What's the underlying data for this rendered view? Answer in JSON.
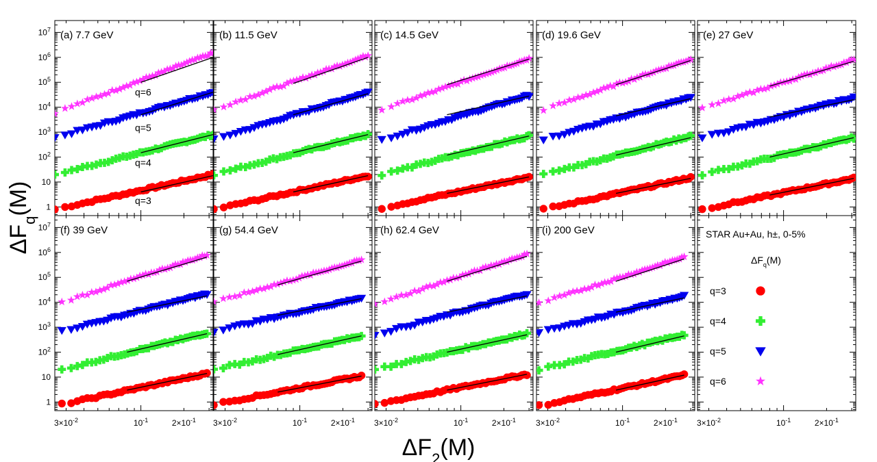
{
  "chart_data": {
    "type": "scatter",
    "xlabel": "ΔF2(M)",
    "ylabel": "ΔFq(M)",
    "xscale": "log",
    "yscale": "log",
    "xlim": [
      0.025,
      0.32
    ],
    "ylim": [
      0.45,
      30000000
    ],
    "x_tick_labels": [
      "3×10⁻²",
      "10⁻¹",
      "2×10⁻¹"
    ],
    "y_tick_labels": [
      "1",
      "10",
      "10²",
      "10³",
      "10⁴",
      "10⁵",
      "10⁶",
      "10⁷"
    ],
    "series_colors": {
      "q=3": "#ff0000",
      "q=4": "#33ee33",
      "q=5": "#0000ee",
      "q=6": "#ff33ff"
    },
    "series_markers": {
      "q=3": "circle",
      "q=4": "cross",
      "q=5": "triangle-down",
      "q=6": "star"
    },
    "fit_line_color": "#000000",
    "panels": [
      {
        "label": "(a) 7.7 GeV",
        "x_range": [
          0.025,
          0.32
        ],
        "fit_x": [
          0.1,
          0.32
        ],
        "values_at_min": {
          "q=3": 0.8,
          "q=4": 20,
          "q=5": 600,
          "q=6": 6000
        },
        "values_at_max": {
          "q=3": 20,
          "q=4": 800,
          "q=5": 40000,
          "q=6": 1500000
        },
        "fit_y": {
          "q=3": [
            4,
            18
          ],
          "q=4": [
            150,
            800
          ],
          "q=5": [
            5000,
            40000
          ],
          "q=6": [
            100000,
            1000000
          ]
        }
      },
      {
        "label": "(b) 11.5 GeV",
        "x_range": [
          0.025,
          0.3
        ],
        "fit_x": [
          0.09,
          0.3
        ],
        "values_at_min": {
          "q=3": 0.8,
          "q=4": 20,
          "q=5": 500,
          "q=6": 8000
        },
        "values_at_max": {
          "q=3": 18,
          "q=4": 800,
          "q=5": 40000,
          "q=6": 1200000
        },
        "fit_y": {
          "q=3": [
            4,
            18
          ],
          "q=4": [
            150,
            800
          ],
          "q=5": [
            5000,
            35000
          ],
          "q=6": [
            90000,
            1000000
          ]
        }
      },
      {
        "label": "(c) 14.5 GeV",
        "x_range": [
          0.028,
          0.3
        ],
        "fit_x": [
          0.08,
          0.3
        ],
        "values_at_min": {
          "q=3": 0.9,
          "q=4": 20,
          "q=5": 500,
          "q=6": 8000
        },
        "values_at_max": {
          "q=3": 16,
          "q=4": 700,
          "q=5": 30000,
          "q=6": 900000
        },
        "fit_y": {
          "q=3": [
            3.5,
            16
          ],
          "q=4": [
            120,
            700
          ],
          "q=5": [
            5000,
            28000
          ],
          "q=6": [
            80000,
            850000
          ]
        }
      },
      {
        "label": "(d) 19.6 GeV",
        "x_range": [
          0.028,
          0.3
        ],
        "fit_x": [
          0.09,
          0.3
        ],
        "values_at_min": {
          "q=3": 0.8,
          "q=4": 20,
          "q=5": 500,
          "q=6": 8000
        },
        "values_at_max": {
          "q=3": 15,
          "q=4": 700,
          "q=5": 25000,
          "q=6": 850000
        },
        "fit_y": {
          "q=3": [
            3.5,
            14
          ],
          "q=4": [
            120,
            600
          ],
          "q=5": [
            4500,
            22000
          ],
          "q=6": [
            80000,
            750000
          ]
        }
      },
      {
        "label": "(e) 27 GeV",
        "x_range": [
          0.027,
          0.31
        ],
        "fit_x": [
          0.08,
          0.31
        ],
        "values_at_min": {
          "q=3": 0.8,
          "q=4": 20,
          "q=5": 600,
          "q=6": 9000
        },
        "values_at_max": {
          "q=3": 14,
          "q=4": 600,
          "q=5": 25000,
          "q=6": 800000
        },
        "fit_y": {
          "q=3": [
            3,
            14
          ],
          "q=4": [
            100,
            600
          ],
          "q=5": [
            4000,
            20000
          ],
          "q=6": [
            70000,
            700000
          ]
        }
      },
      {
        "label": "(f) 39 GeV",
        "x_range": [
          0.028,
          0.29
        ],
        "fit_x": [
          0.08,
          0.29
        ],
        "values_at_min": {
          "q=3": 0.8,
          "q=4": 20,
          "q=5": 700,
          "q=6": 10000
        },
        "values_at_max": {
          "q=3": 14,
          "q=4": 600,
          "q=5": 22000,
          "q=6": 800000
        },
        "fit_y": {
          "q=3": [
            3,
            14
          ],
          "q=4": [
            100,
            550
          ],
          "q=5": [
            4000,
            18000
          ],
          "q=6": [
            70000,
            650000
          ]
        }
      },
      {
        "label": "(g) 54.4 GeV",
        "x_range": [
          0.025,
          0.27
        ],
        "fit_x": [
          0.07,
          0.27
        ],
        "values_at_min": {
          "q=3": 0.8,
          "q=4": 20,
          "q=5": 700,
          "q=6": 10000
        },
        "values_at_max": {
          "q=3": 11,
          "q=4": 450,
          "q=5": 15000,
          "q=6": 500000
        },
        "fit_y": {
          "q=3": [
            2.5,
            11
          ],
          "q=4": [
            80,
            450
          ],
          "q=5": [
            3000,
            14000
          ],
          "q=6": [
            50000,
            450000
          ]
        }
      },
      {
        "label": "(h) 62.4 GeV",
        "x_range": [
          0.025,
          0.29
        ],
        "fit_x": [
          0.08,
          0.29
        ],
        "values_at_min": {
          "q=3": 0.8,
          "q=4": 20,
          "q=5": 500,
          "q=6": 8000
        },
        "values_at_max": {
          "q=3": 13,
          "q=4": 550,
          "q=5": 22000,
          "q=6": 850000
        },
        "fit_y": {
          "q=3": [
            3,
            13
          ],
          "q=4": [
            100,
            500
          ],
          "q=5": [
            4000,
            18000
          ],
          "q=6": [
            70000,
            700000
          ]
        }
      },
      {
        "label": "(i) 200 GeV",
        "x_range": [
          0.026,
          0.27
        ],
        "fit_x": [
          0.09,
          0.27
        ],
        "values_at_min": {
          "q=3": 0.7,
          "q=4": 20,
          "q=5": 600,
          "q=6": 9000
        },
        "values_at_max": {
          "q=3": 12,
          "q=4": 500,
          "q=5": 18000,
          "q=6": 650000
        },
        "fit_y": {
          "q=3": [
            3,
            12
          ],
          "q=4": [
            100,
            450
          ],
          "q=5": [
            4000,
            15000
          ],
          "q=6": [
            70000,
            550000
          ]
        }
      }
    ],
    "q_labels_panel_a": [
      "q=6",
      "q=5",
      "q=4",
      "q=3"
    ],
    "legend": {
      "title": "STAR Au+Au, h±, 0-5%",
      "subtitle": "ΔFq(M)",
      "entries": [
        "q=3",
        "q=4",
        "q=5",
        "q=6"
      ]
    }
  }
}
